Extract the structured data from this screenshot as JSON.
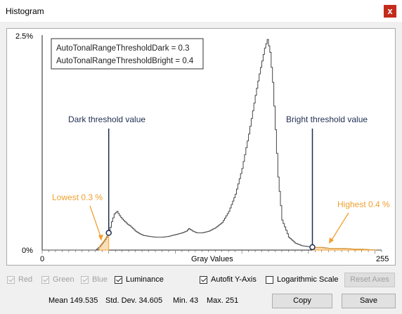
{
  "window": {
    "title": "Histogram",
    "close_glyph": "x"
  },
  "plot": {
    "y_top_label": "2.5%",
    "y_bottom_label": "0%",
    "x_left_label": "0",
    "x_right_label": "255",
    "x_axis_label": "Gray Values",
    "info_line1": "AutoTonalRangeThresholdDark = 0.3",
    "info_line2": "AutoTonalRangeThresholdBright = 0.4",
    "dark_annotation": "Dark threshold value",
    "bright_annotation": "Bright threshold value",
    "lowest_label": "Lowest 0.3 %",
    "highest_label": "Highest 0.4 %",
    "line_color": "#444444",
    "annotation_color": "#1f2d50",
    "highlight_color": "#f0a030"
  },
  "chart_data": {
    "type": "line",
    "xlabel": "Gray Values",
    "xlim": [
      0,
      255
    ],
    "ylim": [
      0,
      2.5
    ],
    "x": [
      0,
      40,
      43,
      47,
      50,
      52,
      54,
      56,
      58,
      60,
      62,
      64,
      66,
      68,
      70,
      73,
      76,
      80,
      85,
      90,
      95,
      100,
      105,
      108,
      110,
      113,
      116,
      120,
      125,
      130,
      135,
      140,
      145,
      150,
      155,
      160,
      163,
      165,
      167,
      169,
      171,
      173,
      175,
      177,
      180,
      185,
      190,
      195,
      200,
      205,
      210,
      215,
      220,
      225,
      230,
      235,
      240,
      245,
      251,
      255
    ],
    "y": [
      0,
      0,
      0.04,
      0.12,
      0.2,
      0.33,
      0.42,
      0.45,
      0.4,
      0.36,
      0.33,
      0.3,
      0.28,
      0.25,
      0.22,
      0.19,
      0.17,
      0.16,
      0.15,
      0.15,
      0.16,
      0.18,
      0.2,
      0.22,
      0.25,
      0.22,
      0.2,
      0.2,
      0.22,
      0.26,
      0.32,
      0.45,
      0.65,
      0.95,
      1.35,
      1.8,
      2.05,
      2.2,
      2.35,
      2.45,
      2.3,
      1.95,
      1.4,
      0.85,
      0.35,
      0.15,
      0.08,
      0.05,
      0.04,
      0.03,
      0.03,
      0.02,
      0.02,
      0.02,
      0.015,
      0.01,
      0.01,
      0.005,
      0,
      0
    ],
    "annotations": [
      {
        "label": "Dark threshold value",
        "x": 50
      },
      {
        "label": "Bright threshold value",
        "x": 203
      },
      {
        "label": "Lowest 0.3 %"
      },
      {
        "label": "Highest 0.4 %"
      }
    ]
  },
  "controls": {
    "red": {
      "label": "Red",
      "checked": true,
      "enabled": false
    },
    "green": {
      "label": "Green",
      "checked": true,
      "enabled": false
    },
    "blue": {
      "label": "Blue",
      "checked": true,
      "enabled": false
    },
    "luminance": {
      "label": "Luminance",
      "checked": true,
      "enabled": true
    },
    "autofit": {
      "label": "Autofit Y-Axis",
      "checked": true,
      "enabled": true
    },
    "log": {
      "label": "Logarithmic Scale",
      "checked": false,
      "enabled": true
    },
    "reset_axes": "Reset Axes"
  },
  "stats": {
    "mean": "Mean 149.535",
    "std": "Std. Dev. 34.605",
    "min": "Min. 43",
    "max": "Max. 251"
  },
  "buttons": {
    "copy": "Copy",
    "save": "Save"
  }
}
